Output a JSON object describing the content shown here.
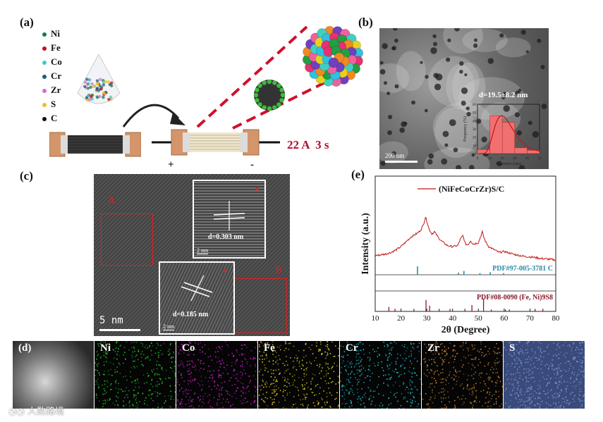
{
  "panels": {
    "a": {
      "label": "(a)",
      "elements": [
        {
          "symbol": "Ni",
          "color": "#1a7a4a"
        },
        {
          "symbol": "Fe",
          "color": "#c0102a"
        },
        {
          "symbol": "Co",
          "color": "#3fc8c8"
        },
        {
          "symbol": "Cr",
          "color": "#205a7a"
        },
        {
          "symbol": "Zr",
          "color": "#d070d0"
        },
        {
          "symbol": "S",
          "color": "#e8c020"
        },
        {
          "symbol": "C",
          "color": "#111111"
        }
      ],
      "shock_label": "22 A  3 s",
      "plus": "+",
      "minus": "-"
    },
    "b": {
      "label": "(b)",
      "scale_bar": "200 nm",
      "inset_title": "d=19.5±8.2 nm"
    },
    "c": {
      "label": "(c)",
      "region_a": "A",
      "region_b": "B",
      "d1": "d=0.303 nm",
      "d2": "d=0.185 nm",
      "inset_scale": "2 nm",
      "scale_bar": "5 nm"
    },
    "d": {
      "label": "(d)",
      "maps": [
        {
          "name": "Ni",
          "color": "#22cc22"
        },
        {
          "name": "Co",
          "color": "#cc22cc"
        },
        {
          "name": "Fe",
          "color": "#e6d21e"
        },
        {
          "name": "Cr",
          "color": "#1ec8d2"
        },
        {
          "name": "Zr",
          "color": "#d68a3a"
        },
        {
          "name": "S",
          "color": "#7a9ad8"
        }
      ]
    },
    "e": {
      "label": "(e)"
    }
  },
  "watermark": "人数路境",
  "chart_data": [
    {
      "type": "bar",
      "xlabel": "Diameter (nm)",
      "ylabel": "Frequency (%)",
      "title": "d=19.5±8.2 nm",
      "x": [
        5,
        15,
        25,
        35,
        45
      ],
      "values": [
        5,
        46,
        38,
        7,
        4
      ],
      "xlim": [
        0,
        50
      ],
      "ylim": [
        0,
        60
      ],
      "xticks": [
        0,
        10,
        20,
        30,
        40,
        50
      ],
      "yticks": [
        0,
        10,
        20,
        30,
        40,
        50,
        60
      ],
      "fit": "lognormal"
    },
    {
      "type": "line",
      "xlabel": "2θ (Degree)",
      "ylabel": "Intensity (a.u.)",
      "xlim": [
        10,
        80
      ],
      "xticks": [
        10,
        20,
        30,
        40,
        50,
        60,
        70,
        80
      ],
      "legend": "(NiFeCoCrZr)S/C",
      "legend_position": "top-right",
      "series": [
        {
          "name": "(NiFeCoCrZr)S/C",
          "color": "#c01818",
          "x": [
            10,
            12,
            14,
            16,
            18,
            20,
            22,
            24,
            26,
            27,
            28,
            29,
            29.5,
            30,
            31,
            32,
            33,
            34,
            35,
            36,
            38,
            40,
            42,
            43,
            44,
            45,
            46,
            47,
            48,
            50,
            51,
            51.5,
            52,
            53,
            54,
            56,
            58,
            60,
            62,
            64,
            66,
            68,
            70,
            72,
            74,
            76,
            78,
            80
          ],
          "y": [
            0.22,
            0.23,
            0.25,
            0.28,
            0.33,
            0.4,
            0.5,
            0.6,
            0.66,
            0.7,
            0.76,
            0.9,
            1.0,
            0.92,
            0.74,
            0.66,
            0.7,
            0.62,
            0.55,
            0.5,
            0.42,
            0.4,
            0.42,
            0.55,
            0.62,
            0.45,
            0.44,
            0.52,
            0.45,
            0.48,
            0.62,
            0.7,
            0.6,
            0.48,
            0.4,
            0.34,
            0.28,
            0.3,
            0.27,
            0.24,
            0.22,
            0.2,
            0.19,
            0.18,
            0.16,
            0.15,
            0.14,
            0.13
          ]
        }
      ],
      "reference_patterns": [
        {
          "name": "PDF#97-005-3781 C",
          "color": "#2a8aaa",
          "peaks": [
            {
              "x": 26.4,
              "h": 1.0
            },
            {
              "x": 42.3,
              "h": 0.25
            },
            {
              "x": 44.4,
              "h": 0.45
            },
            {
              "x": 50.6,
              "h": 0.2
            },
            {
              "x": 54.6,
              "h": 0.3
            },
            {
              "x": 59.8,
              "h": 0.2
            }
          ]
        },
        {
          "name": "PDF#08-0090 (Fe, Ni)9S8",
          "color": "#8a1a2a",
          "peaks": [
            {
              "x": 15.3,
              "h": 0.35
            },
            {
              "x": 17.7,
              "h": 0.2
            },
            {
              "x": 25.0,
              "h": 0.2
            },
            {
              "x": 29.7,
              "h": 0.9
            },
            {
              "x": 31.1,
              "h": 0.45
            },
            {
              "x": 34.8,
              "h": 0.2
            },
            {
              "x": 39.0,
              "h": 0.2
            },
            {
              "x": 44.8,
              "h": 0.2
            },
            {
              "x": 47.5,
              "h": 0.5
            },
            {
              "x": 52.0,
              "h": 1.0
            },
            {
              "x": 55.0,
              "h": 0.15
            },
            {
              "x": 60.5,
              "h": 0.15
            },
            {
              "x": 62.0,
              "h": 0.15
            },
            {
              "x": 72.0,
              "h": 0.2
            },
            {
              "x": 75.0,
              "h": 0.2
            }
          ]
        }
      ]
    }
  ]
}
